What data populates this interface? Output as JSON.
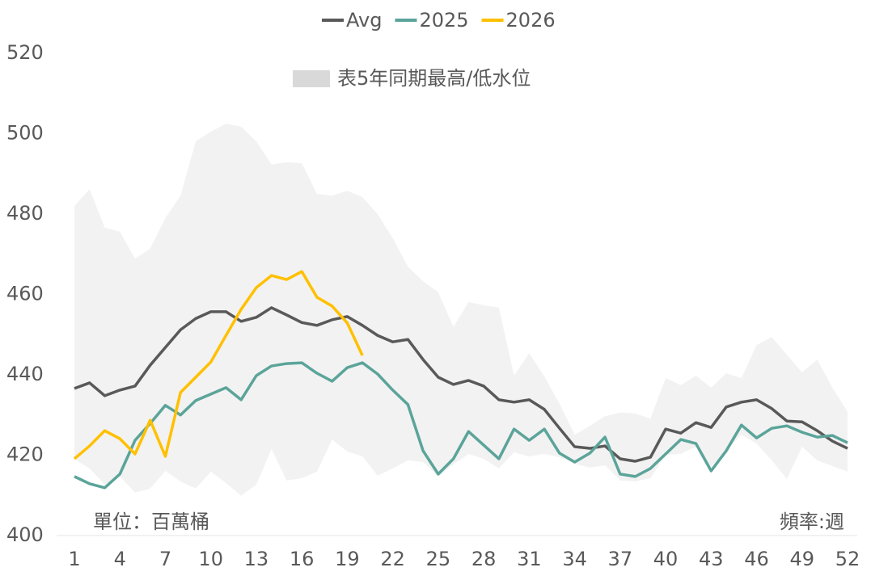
{
  "chart_data": {
    "type": "line",
    "x": [
      1,
      2,
      3,
      4,
      5,
      6,
      7,
      8,
      9,
      10,
      11,
      12,
      13,
      14,
      15,
      16,
      17,
      18,
      19,
      20,
      21,
      22,
      23,
      24,
      25,
      26,
      27,
      28,
      29,
      30,
      31,
      32,
      33,
      34,
      35,
      36,
      37,
      38,
      39,
      40,
      41,
      42,
      43,
      44,
      45,
      46,
      47,
      48,
      49,
      50,
      51,
      52
    ],
    "xlim": [
      1,
      52
    ],
    "xticks": [
      1,
      4,
      7,
      10,
      13,
      16,
      19,
      22,
      25,
      28,
      31,
      34,
      37,
      40,
      43,
      46,
      49,
      52
    ],
    "ylim": [
      400,
      520
    ],
    "yticks": [
      400,
      420,
      440,
      460,
      480,
      500,
      520
    ],
    "grid": false,
    "legend": "top",
    "band": {
      "name": "表5年同期最高/低水位",
      "color": "#f2f2f2",
      "legend_color": "#d9d9d9",
      "high": [
        482,
        486.2,
        476.6,
        475.6,
        468.9,
        471.4,
        479,
        484.6,
        498.1,
        500.5,
        502.5,
        501.7,
        498.1,
        492.3,
        492.9,
        492.7,
        485,
        484.6,
        485.8,
        484.2,
        480,
        474,
        466.9,
        463.3,
        460.5,
        451.9,
        458.1,
        457.3,
        456.7,
        439.8,
        445.4,
        439.6,
        432.8,
        425.1,
        427.3,
        429.7,
        430.6,
        430.4,
        429.1,
        439.2,
        437.4,
        439.8,
        436.8,
        440.4,
        439.2,
        447.4,
        449.4,
        445,
        440.6,
        443.8,
        436.8,
        430.8
      ],
      "low": [
        419.1,
        416.7,
        412.7,
        414.7,
        410.7,
        411.7,
        416.1,
        413.5,
        411.7,
        415.9,
        413.1,
        409.9,
        412.7,
        421.5,
        413.7,
        414.3,
        415.9,
        423.9,
        420.9,
        419.7,
        414.9,
        416.7,
        418.7,
        418.3,
        414.7,
        417.7,
        420.3,
        419.1,
        416.7,
        420.7,
        419.7,
        420.3,
        419.5,
        417.9,
        416.9,
        417.5,
        413.7,
        413.5,
        414.3,
        420.1,
        420.3,
        422.1,
        417.1,
        421.1,
        425.1,
        422.9,
        418.7,
        414.1,
        422.1,
        418.7,
        417.3,
        415.9
      ]
    },
    "series": [
      {
        "name": "Avg",
        "color": "#595959",
        "values": [
          436.6,
          438,
          434.8,
          436.2,
          437.2,
          442.4,
          446.8,
          451.2,
          454,
          455.7,
          455.7,
          453.3,
          454.3,
          456.7,
          454.9,
          453,
          452.3,
          453.7,
          454.5,
          452.3,
          449.8,
          448.2,
          448.8,
          443.8,
          439.4,
          437.6,
          438.6,
          437.2,
          433.8,
          433.2,
          433.8,
          431.4,
          426.7,
          422.1,
          421.7,
          422.3,
          419.1,
          418.5,
          419.5,
          426.5,
          425.5,
          428.1,
          426.9,
          432,
          433.2,
          433.8,
          431.6,
          428.5,
          428.3,
          426.1,
          423.5,
          421.7
        ]
      },
      {
        "name": "2025",
        "color": "#5ba49a",
        "values": [
          414.7,
          412.9,
          411.9,
          415.3,
          423.7,
          427.9,
          432.4,
          430,
          433.6,
          435.2,
          436.8,
          433.8,
          439.8,
          442.2,
          442.8,
          443,
          440.4,
          438.4,
          441.8,
          443,
          440.2,
          436.2,
          432.6,
          421.1,
          415.3,
          419.1,
          425.9,
          422.5,
          419.1,
          426.5,
          423.7,
          426.5,
          420.5,
          418.3,
          420.5,
          424.5,
          415.3,
          414.7,
          416.7,
          420.3,
          423.9,
          422.9,
          416.1,
          421.1,
          427.5,
          424.3,
          426.7,
          427.3,
          425.7,
          424.5,
          424.9,
          423.1
        ]
      },
      {
        "name": "2026",
        "color": "#ffc000",
        "values": [
          419.1,
          422.3,
          426.1,
          424.1,
          420.3,
          428.7,
          419.7,
          435.6,
          439.4,
          443.2,
          449.8,
          456.3,
          461.7,
          464.7,
          463.7,
          465.7,
          459.3,
          457.1,
          452.9,
          444.8,
          null,
          null,
          null,
          null,
          null,
          null,
          null,
          null,
          null,
          null,
          null,
          null,
          null,
          null,
          null,
          null,
          null,
          null,
          null,
          null,
          null,
          null,
          null,
          null,
          null,
          null,
          null,
          null,
          null,
          null,
          null,
          null
        ]
      }
    ],
    "annotations": [
      "單位：百萬桶",
      "頻率:週"
    ]
  }
}
